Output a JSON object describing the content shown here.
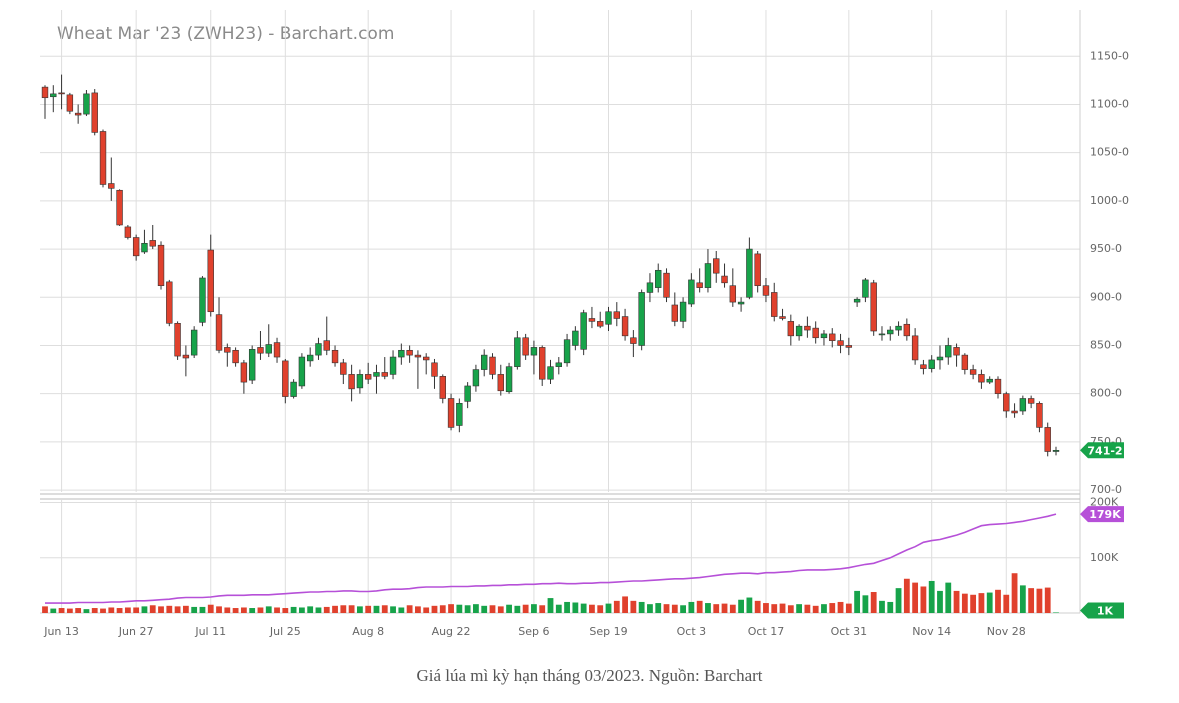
{
  "chart_data": {
    "type": "candlestick",
    "title": "Wheat Mar '23 (ZWH23) - Barchart.com",
    "caption": "Giá lúa mì kỳ hạn tháng 03/2023. Nguồn: Barchart",
    "categories": [
      null,
      null,
      "Jun 13",
      null,
      null,
      null,
      null,
      null,
      null,
      null,
      null,
      "Jun 27",
      null,
      null,
      null,
      null,
      null,
      null,
      null,
      null,
      "Jul 11",
      null,
      null,
      null,
      null,
      null,
      null,
      null,
      null,
      "Jul 25",
      null,
      null,
      null,
      null,
      null,
      null,
      null,
      null,
      null,
      "Aug 8",
      null,
      null,
      null,
      null,
      null,
      null,
      null,
      null,
      null,
      "Aug 22",
      null,
      null,
      null,
      null,
      null,
      null,
      null,
      null,
      null,
      "Sep 6",
      null,
      null,
      null,
      null,
      null,
      null,
      null,
      null,
      "Sep 19",
      null,
      null,
      null,
      null,
      null,
      null,
      null,
      null,
      null,
      "Oct 3",
      null,
      null,
      null,
      null,
      null,
      null,
      null,
      null,
      "Oct 17",
      null,
      null,
      null,
      null,
      null,
      null,
      null,
      null,
      null,
      "Oct 31",
      null,
      null,
      null,
      null,
      null,
      null,
      null,
      null,
      null,
      "Nov 14",
      null,
      null,
      null,
      null,
      null,
      null,
      null,
      null,
      "Nov 28",
      null,
      null,
      null,
      null,
      null,
      null
    ],
    "candles": [
      [
        1118,
        1120,
        1085,
        1107
      ],
      [
        1108,
        1120,
        1092,
        1111
      ],
      [
        1112,
        1131,
        1095,
        1111
      ],
      [
        1110,
        1112,
        1090,
        1093
      ],
      [
        1091,
        1100,
        1080,
        1089
      ],
      [
        1090,
        1115,
        1088,
        1111
      ],
      [
        1112,
        1116,
        1068,
        1071
      ],
      [
        1072,
        1074,
        1014,
        1017
      ],
      [
        1018,
        1045,
        1000,
        1013
      ],
      [
        1011,
        1012,
        974,
        975
      ],
      [
        973,
        975,
        960,
        962
      ],
      [
        962,
        965,
        938,
        943
      ],
      [
        947,
        970,
        945,
        956
      ],
      [
        959,
        975,
        950,
        953
      ],
      [
        954,
        958,
        908,
        912
      ],
      [
        916,
        918,
        870,
        873
      ],
      [
        873,
        875,
        835,
        839
      ],
      [
        840,
        850,
        818,
        837
      ],
      [
        840,
        870,
        837,
        866
      ],
      [
        874,
        922,
        870,
        920
      ],
      [
        949,
        965,
        880,
        885
      ],
      [
        882,
        900,
        842,
        845
      ],
      [
        848,
        852,
        828,
        843
      ],
      [
        845,
        848,
        828,
        832
      ],
      [
        832,
        835,
        800,
        812
      ],
      [
        814,
        850,
        810,
        846
      ],
      [
        848,
        865,
        835,
        842
      ],
      [
        842,
        872,
        838,
        851
      ],
      [
        853,
        858,
        832,
        838
      ],
      [
        834,
        836,
        790,
        797
      ],
      [
        797,
        815,
        795,
        812
      ],
      [
        808,
        842,
        805,
        838
      ],
      [
        834,
        848,
        828,
        840
      ],
      [
        840,
        858,
        835,
        852
      ],
      [
        855,
        880,
        840,
        845
      ],
      [
        845,
        850,
        828,
        832
      ],
      [
        832,
        836,
        810,
        820
      ],
      [
        820,
        830,
        792,
        805
      ],
      [
        806,
        825,
        800,
        820
      ],
      [
        820,
        832,
        810,
        815
      ],
      [
        818,
        830,
        800,
        822
      ],
      [
        822,
        838,
        815,
        818
      ],
      [
        820,
        845,
        815,
        838
      ],
      [
        838,
        852,
        830,
        845
      ],
      [
        845,
        850,
        832,
        840
      ],
      [
        840,
        845,
        805,
        838
      ],
      [
        838,
        842,
        820,
        835
      ],
      [
        832,
        836,
        805,
        818
      ],
      [
        818,
        820,
        790,
        795
      ],
      [
        795,
        800,
        762,
        765
      ],
      [
        767,
        795,
        760,
        790
      ],
      [
        792,
        812,
        785,
        808
      ],
      [
        808,
        830,
        802,
        825
      ],
      [
        825,
        846,
        818,
        840
      ],
      [
        838,
        842,
        815,
        820
      ],
      [
        820,
        830,
        798,
        803
      ],
      [
        802,
        832,
        800,
        828
      ],
      [
        828,
        865,
        825,
        858
      ],
      [
        858,
        862,
        835,
        840
      ],
      [
        840,
        855,
        820,
        848
      ],
      [
        848,
        850,
        808,
        815
      ],
      [
        815,
        835,
        810,
        828
      ],
      [
        828,
        838,
        820,
        832
      ],
      [
        832,
        862,
        828,
        856
      ],
      [
        850,
        870,
        845,
        865
      ],
      [
        846,
        887,
        840,
        884
      ],
      [
        878,
        890,
        868,
        875
      ],
      [
        875,
        885,
        868,
        870
      ],
      [
        872,
        890,
        865,
        885
      ],
      [
        885,
        895,
        870,
        878
      ],
      [
        880,
        888,
        855,
        860
      ],
      [
        858,
        866,
        838,
        852
      ],
      [
        850,
        908,
        845,
        905
      ],
      [
        905,
        925,
        895,
        915
      ],
      [
        910,
        935,
        905,
        928
      ],
      [
        925,
        930,
        895,
        900
      ],
      [
        892,
        905,
        870,
        875
      ],
      [
        875,
        900,
        868,
        895
      ],
      [
        893,
        925,
        890,
        918
      ],
      [
        915,
        930,
        905,
        910
      ],
      [
        910,
        950,
        905,
        935
      ],
      [
        940,
        948,
        915,
        925
      ],
      [
        922,
        935,
        910,
        915
      ],
      [
        912,
        930,
        890,
        895
      ],
      [
        893,
        900,
        885,
        895
      ],
      [
        900,
        962,
        898,
        950
      ],
      [
        945,
        948,
        905,
        912
      ],
      [
        912,
        920,
        895,
        902
      ],
      [
        905,
        915,
        875,
        880
      ],
      [
        880,
        888,
        876,
        878
      ],
      [
        875,
        882,
        850,
        860
      ],
      [
        860,
        872,
        855,
        870
      ],
      [
        870,
        880,
        858,
        866
      ],
      [
        868,
        875,
        852,
        858
      ],
      [
        858,
        866,
        850,
        862
      ],
      [
        862,
        868,
        848,
        855
      ],
      [
        855,
        862,
        842,
        850
      ],
      [
        850,
        858,
        840,
        848
      ],
      [
        895,
        900,
        890,
        898
      ],
      [
        900,
        920,
        895,
        918
      ],
      [
        915,
        918,
        860,
        865
      ],
      [
        862,
        870,
        855,
        862
      ],
      [
        862,
        870,
        855,
        866
      ],
      [
        866,
        875,
        860,
        870
      ],
      [
        872,
        878,
        855,
        860
      ],
      [
        860,
        868,
        830,
        835
      ],
      [
        830,
        835,
        820,
        826
      ],
      [
        826,
        840,
        822,
        835
      ],
      [
        835,
        850,
        825,
        838
      ],
      [
        838,
        858,
        830,
        850
      ],
      [
        848,
        852,
        828,
        840
      ],
      [
        840,
        842,
        820,
        825
      ],
      [
        825,
        830,
        815,
        820
      ],
      [
        820,
        825,
        805,
        812
      ],
      [
        812,
        818,
        810,
        815
      ],
      [
        815,
        818,
        795,
        800
      ],
      [
        800,
        802,
        775,
        782
      ],
      [
        782,
        790,
        775,
        780
      ],
      [
        782,
        798,
        778,
        795
      ],
      [
        795,
        798,
        785,
        790
      ],
      [
        790,
        792,
        760,
        765
      ],
      [
        765,
        770,
        735,
        740
      ],
      [
        740,
        745,
        736,
        741.25
      ]
    ],
    "volume": [
      12,
      8,
      9,
      8,
      9,
      7,
      9,
      8,
      10,
      9,
      10,
      10,
      12,
      14,
      12,
      13,
      12,
      13,
      11,
      11,
      15,
      12,
      10,
      9,
      10,
      9,
      10,
      12,
      10,
      9,
      11,
      10,
      12,
      10,
      11,
      13,
      14,
      14,
      12,
      13,
      13,
      14,
      12,
      10,
      14,
      12,
      10,
      13,
      14,
      16,
      15,
      14,
      16,
      13,
      14,
      12,
      15,
      13,
      15,
      16,
      14,
      27,
      15,
      20,
      19,
      17,
      15,
      14,
      17,
      22,
      30,
      22,
      20,
      16,
      18,
      16,
      15,
      14,
      20,
      22,
      18,
      16,
      17,
      15,
      24,
      28,
      22,
      18,
      16,
      17,
      14,
      16,
      15,
      13,
      16,
      18,
      20,
      17,
      40,
      32,
      38,
      22,
      20,
      45,
      62,
      55,
      48,
      58,
      40,
      55,
      40,
      35,
      33,
      36,
      37,
      42,
      33,
      72,
      50,
      45,
      44,
      46,
      1
    ],
    "open_interest": [
      18,
      18,
      18,
      18,
      19,
      19,
      19,
      19,
      20,
      20,
      21,
      22,
      22,
      23,
      24,
      25,
      27,
      28,
      28,
      28,
      29,
      31,
      32,
      32,
      32,
      33,
      33,
      33,
      34,
      35,
      36,
      37,
      38,
      38,
      39,
      39,
      40,
      40,
      39,
      39,
      40,
      42,
      43,
      43,
      44,
      46,
      47,
      47,
      47,
      48,
      48,
      48,
      49,
      49,
      50,
      50,
      51,
      51,
      52,
      52,
      53,
      53,
      54,
      53,
      53,
      54,
      54,
      55,
      55,
      56,
      57,
      58,
      58,
      59,
      60,
      61,
      62,
      62,
      63,
      64,
      66,
      68,
      70,
      71,
      72,
      72,
      71,
      73,
      73,
      74,
      75,
      77,
      78,
      78,
      78,
      79,
      80,
      82,
      85,
      88,
      90,
      95,
      100,
      107,
      114,
      120,
      128,
      131,
      133,
      137,
      141,
      146,
      152,
      158,
      160,
      161,
      162,
      164,
      166,
      169,
      172,
      175,
      179
    ],
    "up_color": "#17a34a",
    "down_color": "#e0412d",
    "oi_color": "#b650d8",
    "ylim": [
      698,
      1198
    ],
    "yticks": [
      {
        "value": 700,
        "label": "700-0"
      },
      {
        "value": 750,
        "label": "750-0"
      },
      {
        "value": 800,
        "label": "800-0"
      },
      {
        "value": 850,
        "label": "850-0"
      },
      {
        "value": 900,
        "label": "900-0"
      },
      {
        "value": 950,
        "label": "950-0"
      },
      {
        "value": 1000,
        "label": "1000-0"
      },
      {
        "value": 1050,
        "label": "1050-0"
      },
      {
        "value": 1100,
        "label": "1100-0"
      },
      {
        "value": 1150,
        "label": "1150-0"
      }
    ],
    "y2lim": [
      0,
      210
    ],
    "y2ticks": [
      {
        "value": 100,
        "label": "100K"
      },
      {
        "value": 200,
        "label": "200K"
      }
    ],
    "last_price": {
      "value": 741.25,
      "label": "741-2"
    },
    "last_open_interest": {
      "value": 179,
      "label": "179K"
    },
    "last_volume": {
      "value": 1,
      "label": "1K"
    },
    "grid": true
  }
}
